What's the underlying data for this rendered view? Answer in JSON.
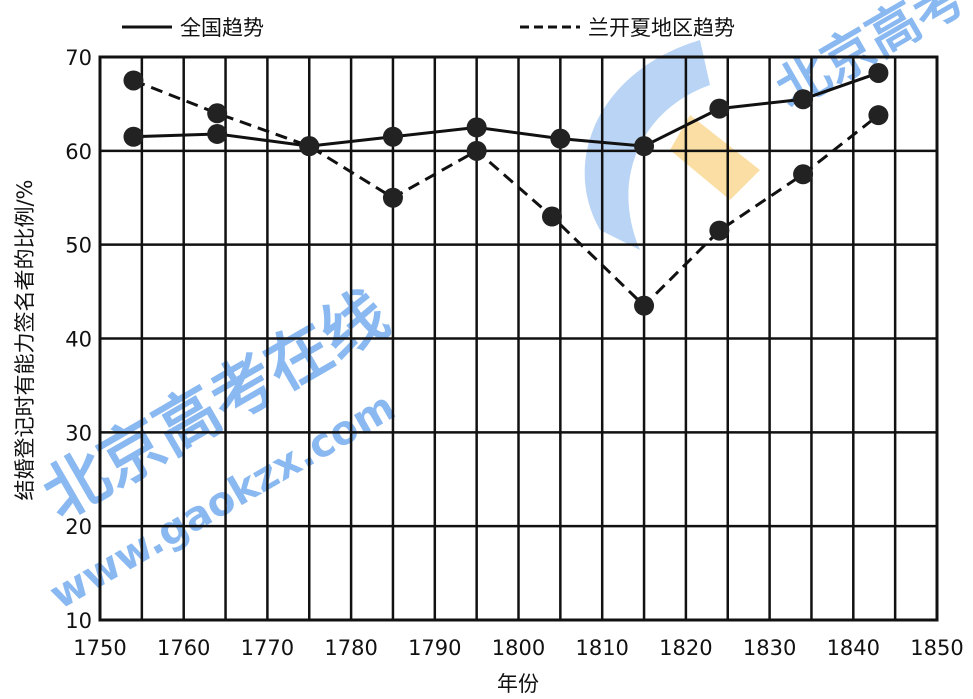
{
  "chart_data": {
    "type": "line",
    "title": "",
    "xlabel": "年份",
    "ylabel": "结婚登记时有能力签名者的比例/%",
    "xlim": [
      1750,
      1850
    ],
    "ylim": [
      10,
      70
    ],
    "x_ticks": [
      1750,
      1760,
      1770,
      1780,
      1790,
      1800,
      1810,
      1820,
      1830,
      1840,
      1850
    ],
    "y_ticks": [
      10,
      20,
      30,
      40,
      50,
      60,
      70
    ],
    "grid": true,
    "legend_position": "top",
    "series": [
      {
        "name": "全国趋势",
        "style": "solid",
        "color": "#111111",
        "x": [
          1754,
          1764,
          1775,
          1785,
          1795,
          1805,
          1815,
          1824,
          1834,
          1843
        ],
        "values": [
          61.5,
          61.8,
          60.5,
          61.5,
          62.5,
          61.3,
          60.5,
          64.5,
          65.5,
          68.3
        ]
      },
      {
        "name": "兰开夏地区趋势",
        "style": "dashed",
        "color": "#111111",
        "x": [
          1754,
          1764,
          1775,
          1785,
          1795,
          1804,
          1815,
          1824,
          1834,
          1843
        ],
        "values": [
          67.5,
          64.0,
          60.5,
          55.0,
          60.0,
          53.0,
          43.5,
          51.5,
          57.5,
          63.8
        ]
      }
    ]
  },
  "watermark": {
    "text_main": "北京高考在线",
    "text_url": "www.gaokzx.com",
    "color_blue": "#2a7fe6",
    "color_orange": "#f5b531"
  }
}
